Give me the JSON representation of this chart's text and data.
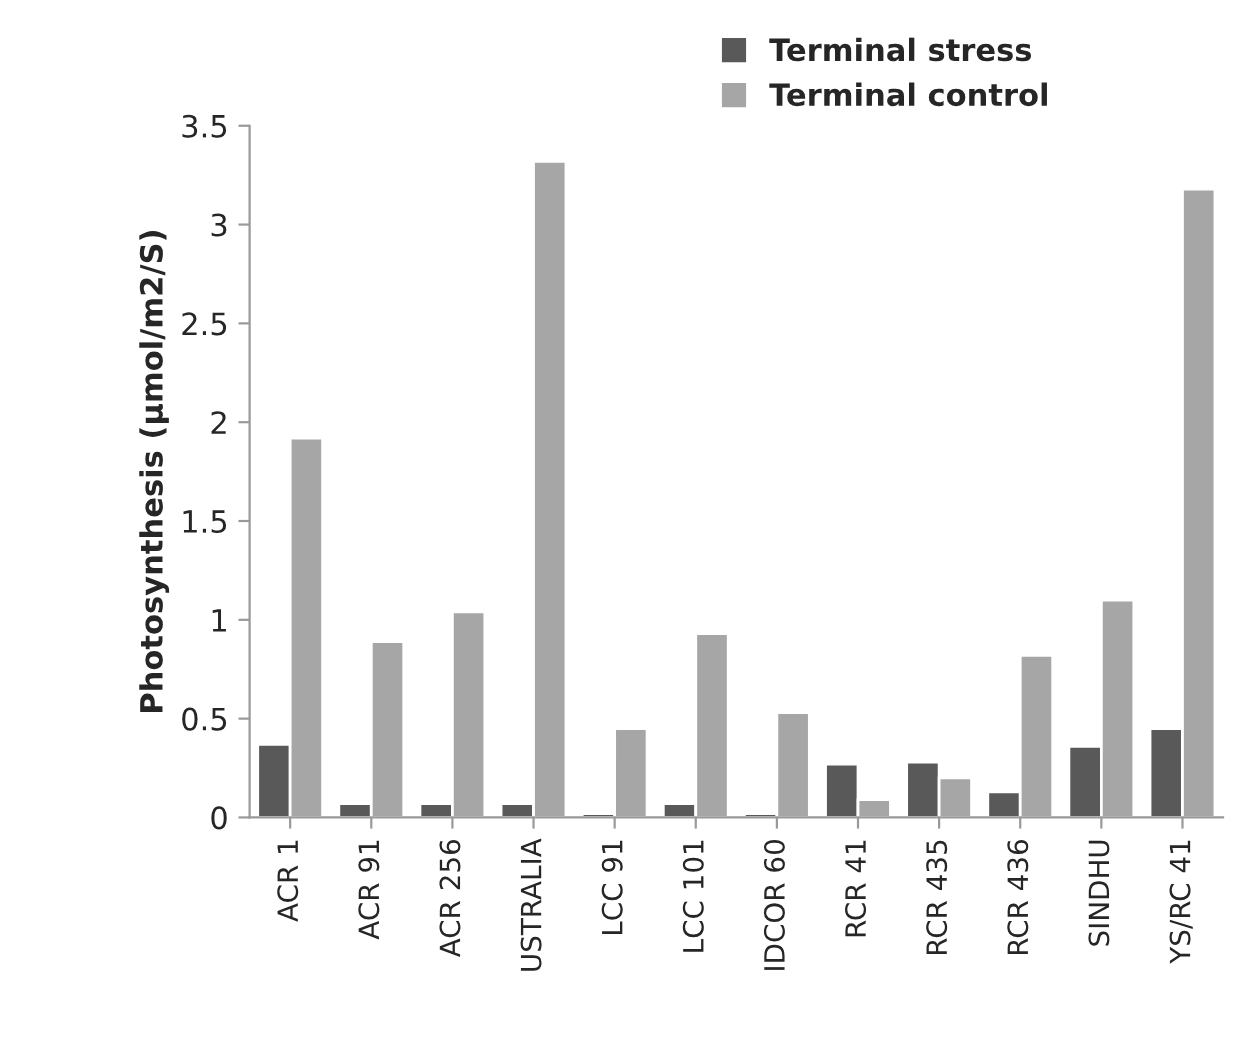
{
  "chart_data": {
    "type": "bar",
    "ylabel": "Photosynthesis (µmol/m2/S)",
    "categories": [
      "ACR 1",
      "ACR 91",
      "ACR 256",
      "USTRALIA",
      "LCC 91",
      "LCC 101",
      "IDCOR 60",
      "RCR 41",
      "RCR 435",
      "RCR 436",
      "SINDHU",
      "YS/RC 41"
    ],
    "series": [
      {
        "name": "Terminal stress",
        "color": "#595959",
        "values": [
          0.37,
          0.07,
          0.07,
          0.07,
          0.02,
          0.07,
          0.02,
          0.27,
          0.28,
          0.13,
          0.36,
          0.45
        ]
      },
      {
        "name": "Terminal control",
        "color": "#a6a6a6",
        "values": [
          1.92,
          0.89,
          1.04,
          3.32,
          0.45,
          0.93,
          0.53,
          0.09,
          0.2,
          0.82,
          1.1,
          3.18
        ]
      }
    ],
    "ylim": [
      0,
      3.5
    ],
    "yticks": [
      0,
      0.5,
      1,
      1.5,
      2,
      2.5,
      3,
      3.5
    ],
    "grid": false,
    "legend": "top right"
  }
}
